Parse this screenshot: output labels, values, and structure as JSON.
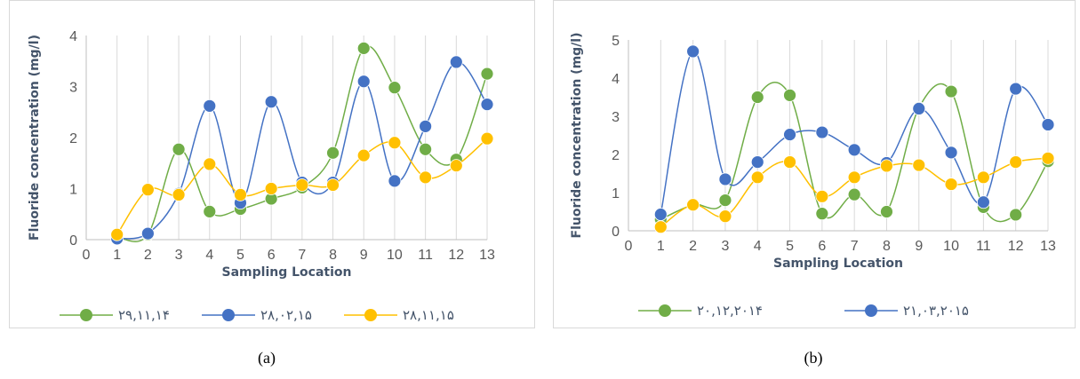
{
  "charts": [
    {
      "panel_label": "(a)",
      "chart_data": {
        "type": "line",
        "title": "",
        "xlabel": "Sampling Location",
        "ylabel": "Fluoride concentration (mg/l)",
        "xlim": [
          0,
          13
        ],
        "ylim": [
          0,
          4
        ],
        "xticks": [
          0,
          1,
          2,
          3,
          4,
          5,
          6,
          7,
          8,
          9,
          10,
          11,
          12,
          13
        ],
        "yticks": [
          0,
          1,
          2,
          3,
          4
        ],
        "grid": "vertical",
        "smooth": true,
        "legend": "bottom",
        "x": [
          1,
          2,
          3,
          4,
          5,
          6,
          7,
          8,
          9,
          10,
          11,
          12,
          13
        ],
        "series": [
          {
            "name": "۲۹,۱۱,۱۴",
            "color": "#70ad47",
            "values": [
              0.05,
              0.1,
              1.77,
              0.55,
              0.6,
              0.8,
              1.02,
              1.7,
              3.75,
              2.98,
              1.77,
              1.57,
              3.25
            ]
          },
          {
            "name": "۲۸,۰۲,۱۵",
            "color": "#4472c4",
            "values": [
              0.02,
              0.12,
              0.9,
              2.62,
              0.72,
              2.7,
              1.12,
              1.12,
              3.1,
              1.15,
              2.22,
              3.48,
              2.65
            ]
          },
          {
            "name": "۲۸,۱۱,۱۵",
            "color": "#ffc000",
            "values": [
              0.1,
              0.98,
              0.88,
              1.48,
              0.88,
              1.0,
              1.07,
              1.07,
              1.65,
              1.9,
              1.22,
              1.45,
              1.98
            ]
          }
        ]
      }
    },
    {
      "panel_label": "(b)",
      "chart_data": {
        "type": "line",
        "title": "",
        "xlabel": "Sampling Location",
        "ylabel": "Fluoride concentration (mg/l)",
        "xlim": [
          0,
          13
        ],
        "ylim": [
          0,
          5
        ],
        "xticks": [
          0,
          1,
          2,
          3,
          4,
          5,
          6,
          7,
          8,
          9,
          10,
          11,
          12,
          13
        ],
        "yticks": [
          0,
          1,
          2,
          3,
          4,
          5
        ],
        "grid": "vertical",
        "smooth": true,
        "legend": "bottom",
        "x": [
          1,
          2,
          3,
          4,
          5,
          6,
          7,
          8,
          9,
          10,
          11,
          12,
          13
        ],
        "series": [
          {
            "name": "۲۰,۱۲,۲۰۱۴",
            "color": "#70ad47",
            "values": [
              0.3,
              0.68,
              0.8,
              3.5,
              3.55,
              0.45,
              0.95,
              0.5,
              3.22,
              3.65,
              0.62,
              0.42,
              1.82
            ]
          },
          {
            "name": "۲۱,۰۳,۲۰۱۵",
            "color": "#4472c4",
            "values": [
              0.43,
              4.7,
              1.35,
              1.8,
              2.52,
              2.58,
              2.12,
              1.78,
              3.2,
              2.05,
              0.75,
              3.72,
              2.78
            ]
          },
          {
            "name": "",
            "color": "#ffc000",
            "values": [
              0.1,
              0.68,
              0.38,
              1.4,
              1.8,
              0.9,
              1.4,
              1.7,
              1.72,
              1.22,
              1.4,
              1.8,
              1.9
            ]
          }
        ]
      }
    }
  ]
}
